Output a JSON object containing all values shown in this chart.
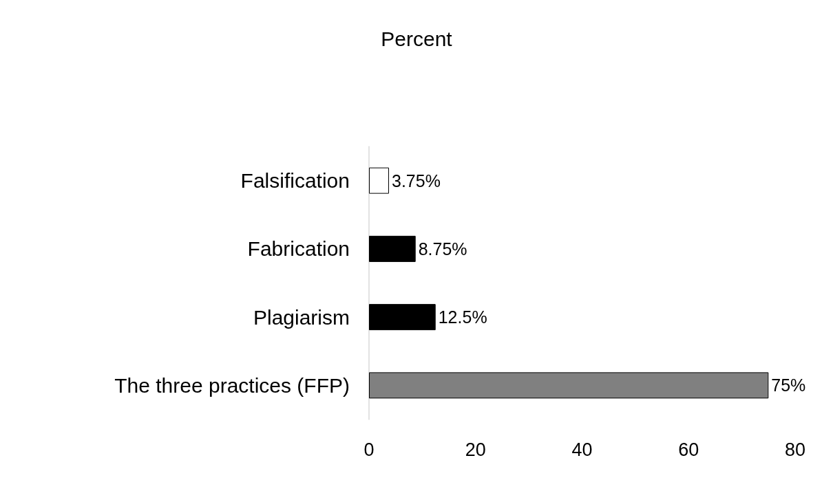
{
  "chart_data": {
    "type": "bar",
    "orientation": "horizontal",
    "title": "Percent",
    "categories": [
      "Falsification",
      "Fabrication",
      "Plagiarism",
      "The three practices (FFP)"
    ],
    "values": [
      3.75,
      8.75,
      12.5,
      75
    ],
    "colors": [
      "#ffffff",
      "#000000",
      "#000000",
      "#808080"
    ],
    "value_labels": [
      "3.75%",
      "8.75%",
      "12.5%",
      "75%"
    ],
    "xlim": [
      0,
      80
    ],
    "xticks": [
      0,
      20,
      40,
      60,
      80
    ],
    "grid": false
  }
}
